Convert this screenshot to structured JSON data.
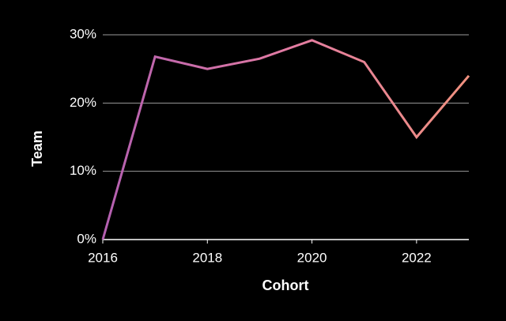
{
  "chart_data": {
    "type": "line",
    "x_label": "Cohort",
    "y_label": "Team",
    "x": [
      2016,
      2017,
      2018,
      2019,
      2020,
      2021,
      2022,
      2023
    ],
    "series": [
      {
        "name": "Team",
        "colors": [
          "#b35fb0",
          "#e27ba3",
          "#f0917f"
        ],
        "values": [
          0,
          26.8,
          25,
          26.5,
          29.2,
          26,
          15,
          24
        ]
      }
    ],
    "xlim": [
      2016,
      2023
    ],
    "xticks": [
      2016,
      2018,
      2020,
      2022
    ],
    "ylim": [
      0,
      30
    ],
    "yticks": [
      {
        "value": 0,
        "label": "0%"
      },
      {
        "value": 10,
        "label": "10%"
      },
      {
        "value": 20,
        "label": "20%"
      },
      {
        "value": 30,
        "label": "30%"
      }
    ],
    "grid": true
  }
}
